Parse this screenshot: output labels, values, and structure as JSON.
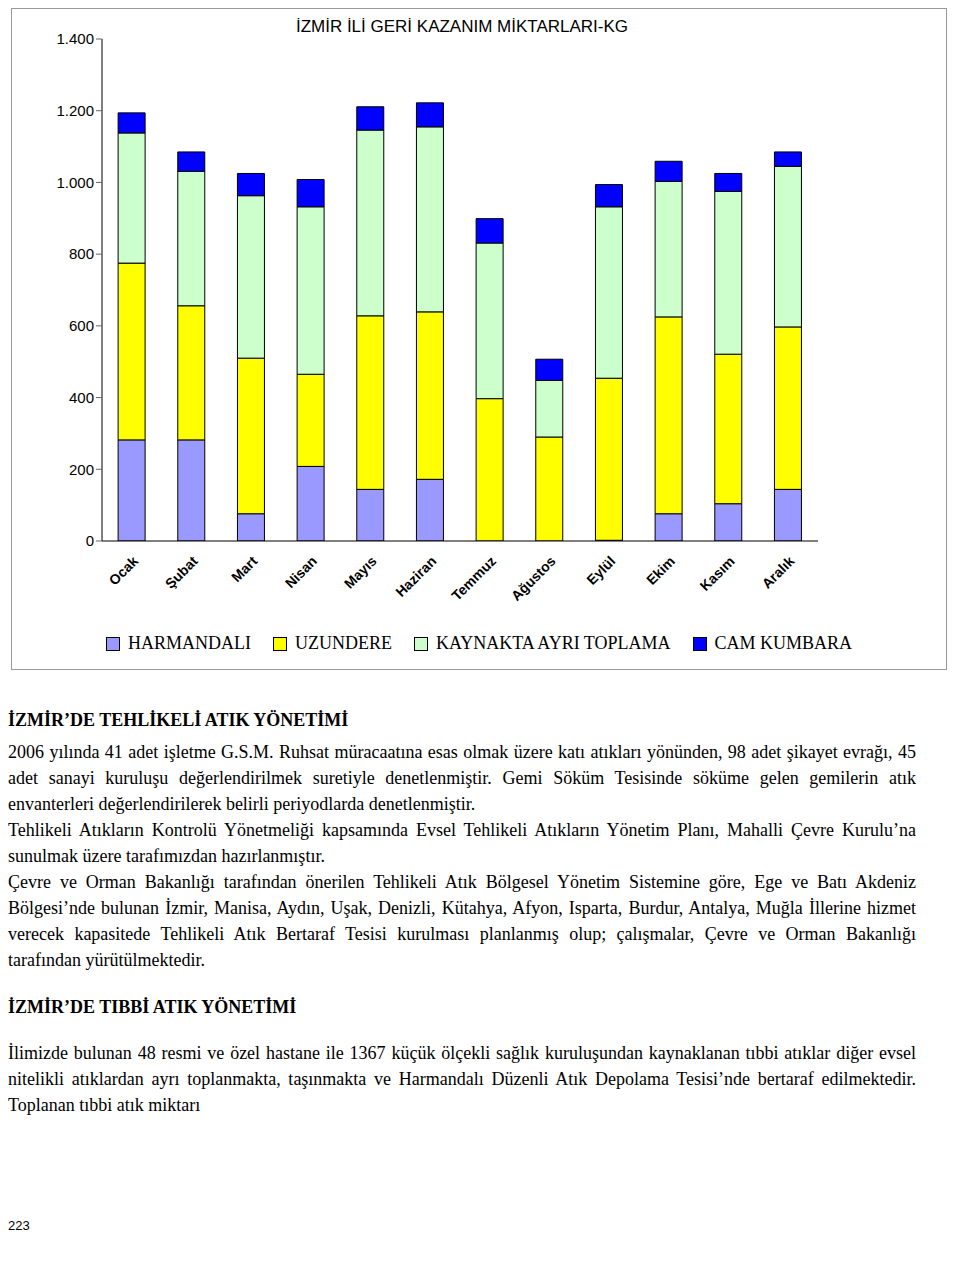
{
  "chart_data": {
    "type": "bar",
    "title": "İZMİR İLİ GERİ KAZANIM MİKTARLARI-KG",
    "categories": [
      "Ocak",
      "Şubat",
      "Mart",
      "Nisan",
      "Mayıs",
      "Haziran",
      "Temmuz",
      "Ağustos",
      "Eylül",
      "Ekim",
      "Kasım",
      "Aralık"
    ],
    "series": [
      {
        "name": "HARMANDALI",
        "color": "#9999ff",
        "values": [
          282,
          282,
          76,
          208,
          144,
          172,
          0,
          0,
          2,
          76,
          104,
          144
        ]
      },
      {
        "name": "UZUNDERE",
        "color": "#ffff00",
        "values": [
          493,
          374,
          434,
          257,
          484,
          467,
          397,
          290,
          452,
          549,
          417,
          453
        ]
      },
      {
        "name": "KAYNAKTA AYRI TOPLAMA",
        "color": "#ccffcc",
        "values": [
          363,
          375,
          453,
          467,
          518,
          516,
          434,
          158,
          478,
          378,
          454,
          448
        ]
      },
      {
        "name": "CAM KUMBARA",
        "color": "#0000ff",
        "values": [
          56,
          54,
          62,
          76,
          65,
          67,
          68,
          59,
          62,
          56,
          50,
          40
        ]
      }
    ],
    "stacked": true,
    "legend": "bottom",
    "grid": false,
    "ylim": [
      0,
      1400
    ],
    "yticks": [
      0,
      200,
      400,
      600,
      800,
      {
        "value": 1000,
        "label": "1.000"
      },
      {
        "value": 1200,
        "label": "1.200"
      },
      {
        "value": 1400,
        "label": "1.400"
      }
    ]
  },
  "document": {
    "section1": {
      "heading": "İZMİR’DE TEHLİKELİ ATIK YÖNETİMİ",
      "paragraphs": [
        "2006 yılında 41 adet işletme G.S.M. Ruhsat müracaatına esas olmak üzere katı atıkları yönünden, 98 adet şikayet evrağı, 45 adet sanayi kuruluşu değerlendirilmek suretiyle denetlenmiştir. Gemi Söküm Tesisinde söküme gelen gemilerin atık envanterleri değerlendirilerek belirli periyodlarda denetlenmiştir.",
        "Tehlikeli Atıkların Kontrolü Yönetmeliği kapsamında Evsel Tehlikeli Atıkların Yönetim Planı, Mahalli Çevre Kurulu’na sunulmak üzere tarafımızdan hazırlanmıştır.",
        "Çevre ve Orman Bakanlığı tarafından önerilen Tehlikeli Atık Bölgesel Yönetim Sistemine göre, Ege ve Batı Akdeniz Bölgesi’nde bulunan İzmir, Manisa, Aydın, Uşak, Denizli, Kütahya, Afyon, Isparta, Burdur, Antalya, Muğla İllerine hizmet verecek kapasitede Tehlikeli Atık Bertaraf Tesisi kurulması planlanmış olup; çalışmalar, Çevre ve Orman Bakanlığı tarafından yürütülmektedir."
      ]
    },
    "section2": {
      "heading": "İZMİR’DE TIBBİ ATIK YÖNETİMİ",
      "paragraphs": [
        "İlimizde bulunan 48 resmi ve özel hastane ile 1367 küçük ölçekli sağlık kuruluşundan kaynaklanan tıbbi atıklar diğer evsel nitelikli atıklardan ayrı toplanmakta, taşınmakta ve Harmandalı Düzenli Atık Depolama Tesisi’nde bertaraf edilmektedir. Toplanan tıbbi atık miktarı"
      ]
    },
    "page_number": "223"
  }
}
